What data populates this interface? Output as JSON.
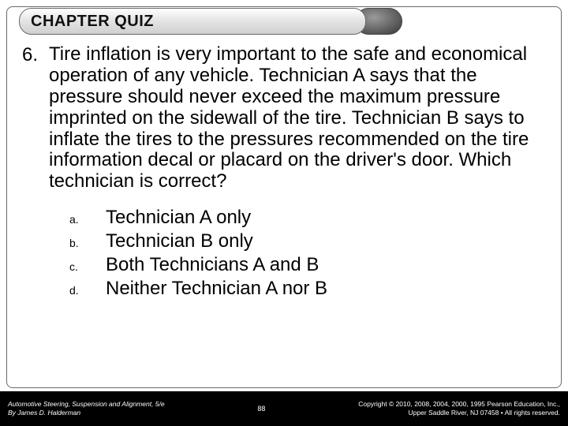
{
  "header": {
    "title": "CHAPTER QUIZ"
  },
  "question": {
    "number": "6.",
    "text": "Tire inflation is very important to the safe and economical operation of any vehicle. Technician A says that the pressure should never exceed the maximum pressure imprinted on the sidewall of the tire. Technician B says to inflate the tires to the pressures recommended on the tire information decal or placard on the driver's door. Which technician is correct?"
  },
  "options": [
    {
      "letter": "a.",
      "text": "Technician A only"
    },
    {
      "letter": "b.",
      "text": "Technician B only"
    },
    {
      "letter": "c.",
      "text": "Both Technicians A and B"
    },
    {
      "letter": "d.",
      "text": "Neither Technician A nor B"
    }
  ],
  "footer": {
    "left_line1": "Automotive Steering, Suspension and Alignment, 5/e",
    "left_line2": "By James D. Halderman",
    "page": "88",
    "right_line1": "Copyright © 2010, 2008, 2004, 2000, 1995 Pearson Education, Inc.,",
    "right_line2": "Upper Saddle River, NJ 07458 • All rights reserved."
  },
  "colors": {
    "frame_border": "#6a6a6a",
    "footer_bg": "#000000",
    "text": "#000000"
  }
}
